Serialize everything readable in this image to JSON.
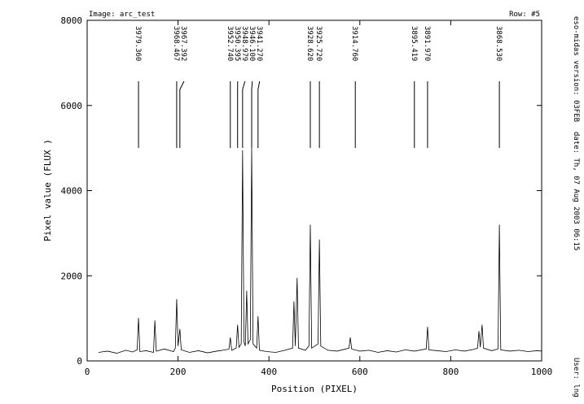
{
  "chart_data": {
    "type": "line",
    "header_left": "Image: arc_test",
    "header_right": "Row: #5",
    "side_text": [
      "eso-midas version: 03FEB",
      "date: Th, 07 Aug 2003 06:15",
      "User: lng"
    ],
    "x_label": "Position (PIXEL)",
    "y_label": "Pixel value (FLUX )",
    "xlim": [
      0,
      1000
    ],
    "ylim": [
      0,
      8000
    ],
    "xticks": [
      0,
      200,
      400,
      600,
      800,
      1000
    ],
    "yticks": [
      0,
      2000,
      4000,
      6000,
      8000
    ],
    "color": "#000000",
    "x": [
      25,
      45,
      65,
      85,
      100,
      110,
      113,
      116,
      130,
      146,
      149,
      152,
      170,
      190,
      194,
      197,
      200,
      204,
      207,
      225,
      245,
      265,
      285,
      305,
      312,
      315,
      318,
      328,
      331,
      334,
      339,
      342,
      345,
      348,
      351,
      354,
      359,
      362,
      365,
      373,
      376,
      379,
      395,
      415,
      435,
      452,
      455,
      458,
      462,
      465,
      480,
      488,
      491,
      494,
      508,
      511,
      514,
      530,
      550,
      576,
      579,
      582,
      600,
      620,
      640,
      660,
      680,
      700,
      720,
      746,
      749,
      752,
      770,
      790,
      810,
      830,
      850,
      859,
      862,
      865,
      869,
      872,
      890,
      904,
      907,
      910,
      930,
      950,
      970,
      990,
      1000
    ],
    "values": [
      200,
      230,
      180,
      250,
      210,
      260,
      1010,
      220,
      240,
      200,
      950,
      230,
      280,
      220,
      300,
      1450,
      350,
      750,
      260,
      200,
      240,
      190,
      230,
      260,
      280,
      550,
      250,
      300,
      850,
      320,
      400,
      4950,
      450,
      350,
      1650,
      400,
      500,
      5000,
      400,
      300,
      1050,
      250,
      220,
      200,
      250,
      300,
      1400,
      350,
      1950,
      300,
      250,
      350,
      3200,
      300,
      400,
      2850,
      350,
      250,
      230,
      300,
      550,
      280,
      230,
      250,
      200,
      240,
      210,
      260,
      230,
      280,
      800,
      260,
      240,
      220,
      260,
      230,
      270,
      300,
      700,
      320,
      850,
      300,
      240,
      280,
      3200,
      260,
      230,
      250,
      220,
      240,
      230
    ],
    "line_ids": [
      {
        "position": 113,
        "label": "3979.360"
      },
      {
        "position": 197,
        "label": "3968.467"
      },
      {
        "position": 204,
        "label": "3967.392"
      },
      {
        "position": 315,
        "label": "3952.740"
      },
      {
        "position": 331,
        "label": "3950.395"
      },
      {
        "position": 342,
        "label": "3948.979"
      },
      {
        "position": 362,
        "label": "3946.100"
      },
      {
        "position": 376,
        "label": "3941.270"
      },
      {
        "position": 491,
        "label": "3928.620"
      },
      {
        "position": 511,
        "label": "3925.720"
      },
      {
        "position": 590,
        "label": "3914.760"
      },
      {
        "position": 720,
        "label": "3895.419"
      },
      {
        "position": 749,
        "label": "3891.970"
      },
      {
        "position": 907,
        "label": "3868.530"
      }
    ]
  }
}
